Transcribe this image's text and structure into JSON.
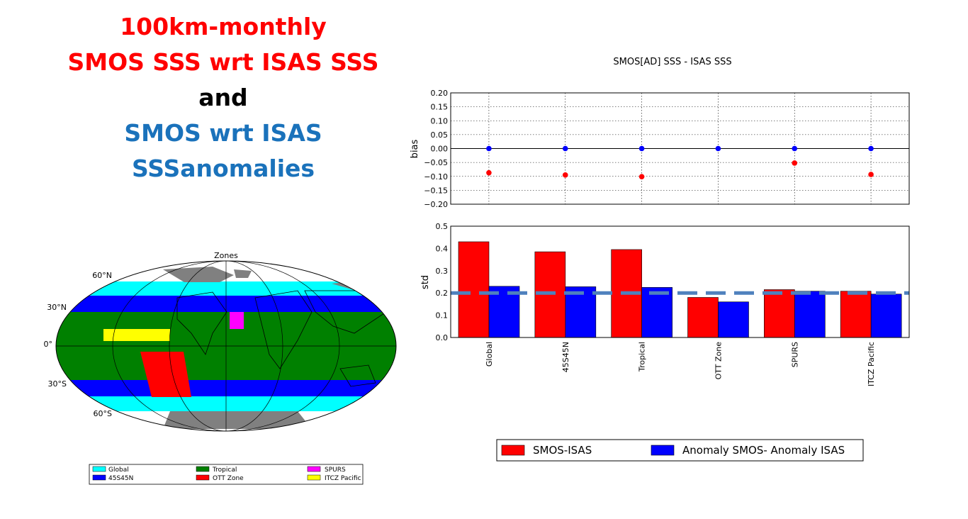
{
  "heading": {
    "line1": "100km-monthly",
    "line2": "SMOS SSS wrt ISAS SSS",
    "line3": "and",
    "line4": "SMOS wrt ISAS",
    "line5": "SSSanomalies"
  },
  "map": {
    "title": "Zones",
    "lat_labels": [
      "60°N",
      "30°N",
      "0°",
      "30°S",
      "60°S"
    ],
    "legend": [
      {
        "label": "Global",
        "color": "#00ffff"
      },
      {
        "label": "45S45N",
        "color": "#0000ff"
      },
      {
        "label": "Tropical",
        "color": "#008000"
      },
      {
        "label": "OTT Zone",
        "color": "#ff0000"
      },
      {
        "label": "SPURS",
        "color": "#ff00ff"
      },
      {
        "label": "ITCZ Pacific",
        "color": "#ffff00"
      }
    ]
  },
  "chart_data": [
    {
      "type": "scatter",
      "title": "SMOS[AD] SSS - ISAS SSS",
      "ylabel": "bias",
      "ylim": [
        -0.2,
        0.2
      ],
      "yticks": [
        "0.20",
        "0.15",
        "0.10",
        "0.05",
        "0.00",
        "−0.05",
        "−0.10",
        "−0.15",
        "−0.20"
      ],
      "grid": true,
      "categories": [
        "Global",
        "45S45N",
        "Tropical",
        "OTT Zone",
        "SPURS",
        "ITCZ Pacific"
      ],
      "series": [
        {
          "name": "SMOS-ISAS",
          "color": "#ff0000",
          "values": [
            -0.087,
            -0.095,
            -0.101,
            null,
            -0.052,
            -0.093
          ]
        },
        {
          "name": "Anomaly SMOS- Anomaly ISAS",
          "color": "#0000ff",
          "values": [
            0.0,
            0.0,
            0.0,
            0.0,
            0.0,
            0.0
          ]
        }
      ]
    },
    {
      "type": "bar",
      "ylabel": "std",
      "ylim": [
        0.0,
        0.5
      ],
      "yticks": [
        "0.5",
        "0.4",
        "0.3",
        "0.2",
        "0.1",
        "0.0"
      ],
      "categories": [
        "Global",
        "45S45N",
        "Tropical",
        "OTT Zone",
        "SPURS",
        "ITCZ Pacific"
      ],
      "series": [
        {
          "name": "SMOS-ISAS",
          "color": "#ff0000",
          "values": [
            0.43,
            0.385,
            0.395,
            0.18,
            0.215,
            0.208
          ]
        },
        {
          "name": "Anomaly SMOS- Anomaly ISAS",
          "color": "#0000ff",
          "values": [
            0.23,
            0.228,
            0.225,
            0.16,
            0.208,
            0.195
          ]
        }
      ],
      "reference_line": {
        "value": 0.2,
        "color": "#4f81bd"
      },
      "legend": {
        "placement": "bottom",
        "entries": [
          "SMOS-ISAS",
          "Anomaly SMOS- Anomaly ISAS"
        ]
      }
    }
  ]
}
